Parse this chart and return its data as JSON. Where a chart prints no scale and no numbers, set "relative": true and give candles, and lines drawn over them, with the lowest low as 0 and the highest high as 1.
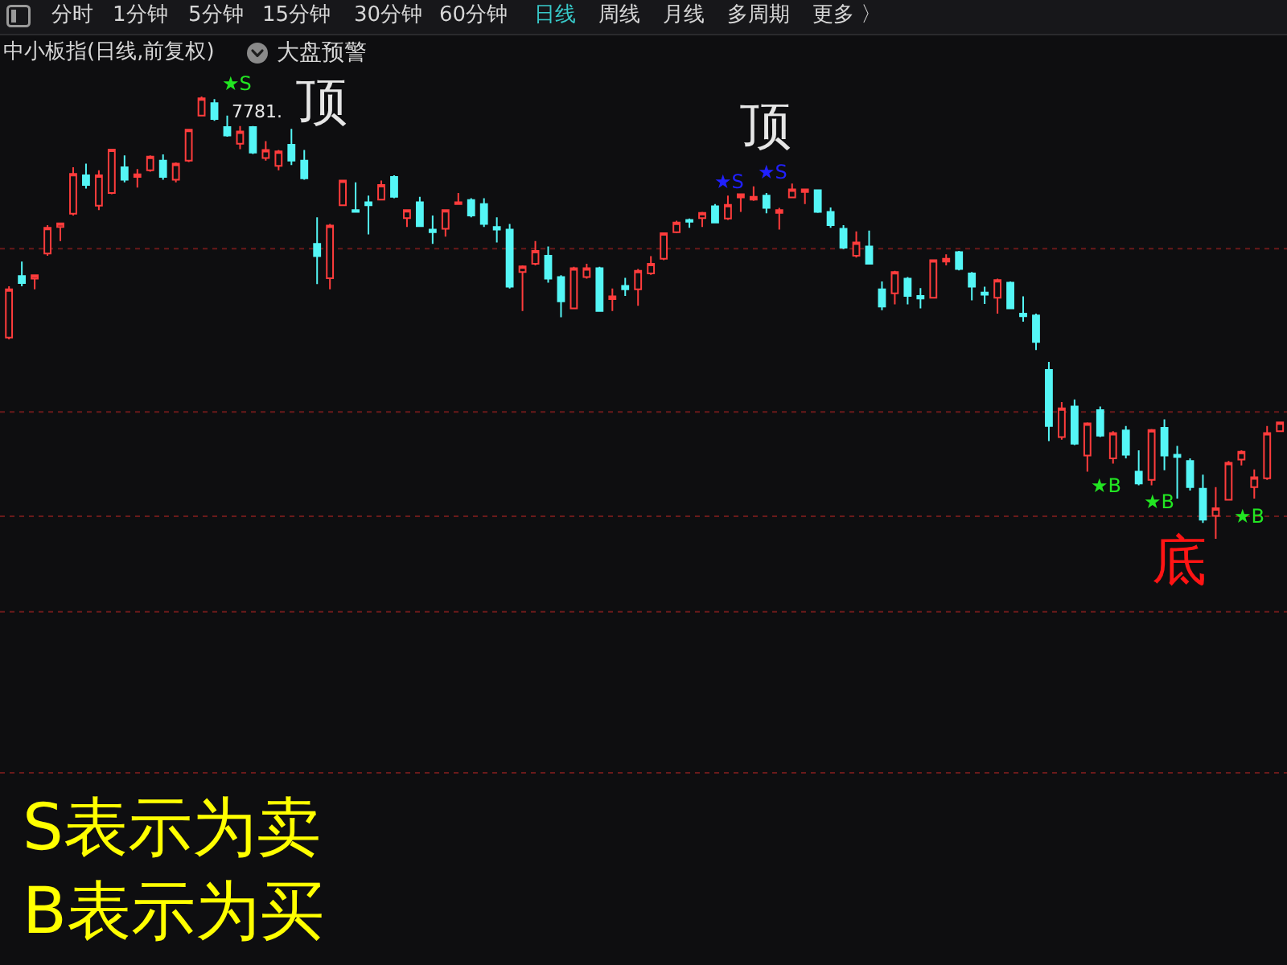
{
  "chart_data": {
    "type": "candlestick",
    "title": "中小板指(日线,前复权)",
    "relative": true,
    "annotations": [
      "分时",
      "1分钟",
      "5分钟",
      "15分钟",
      "30分钟",
      "60分钟",
      "日线",
      "周线",
      "月线",
      "多周期",
      "更多 〉",
      "大盘预警",
      "★S",
      "顶",
      "7781.",
      "顶",
      "★S",
      "★S",
      "★B",
      "★B",
      "★B",
      "底",
      "S表示为卖",
      "B表示为买"
    ],
    "categories": [
      null,
      null,
      null,
      null,
      null,
      null,
      null,
      null,
      null,
      null,
      null,
      null,
      null,
      null,
      null,
      null,
      null,
      null,
      null,
      null,
      null,
      null,
      null,
      null,
      null,
      null,
      null,
      null,
      null,
      null,
      null,
      null,
      null,
      null,
      null,
      null,
      null,
      null,
      null,
      null,
      null,
      null,
      null,
      null,
      null,
      null,
      null,
      null,
      null,
      null,
      null,
      null,
      null,
      null,
      null,
      null,
      null,
      null,
      null,
      null,
      null,
      null,
      null,
      null,
      null,
      null,
      null,
      null,
      null,
      null,
      null,
      null,
      null,
      null,
      null,
      null,
      null,
      null,
      null,
      null,
      null,
      null,
      null,
      null,
      null,
      null,
      null,
      null,
      null,
      null,
      null,
      null,
      null,
      null,
      null,
      null,
      null,
      null,
      null,
      null
    ],
    "ohlc": [
      [
        0.455,
        0.571,
        0.451,
        0.564
      ],
      [
        0.594,
        0.627,
        0.571,
        0.578
      ],
      [
        0.588,
        0.596,
        0.564,
        0.596
      ],
      [
        0.645,
        0.709,
        0.64,
        0.703
      ],
      [
        0.705,
        0.713,
        0.673,
        0.713
      ],
      [
        0.735,
        0.84,
        0.731,
        0.825
      ],
      [
        0.822,
        0.848,
        0.792,
        0.8
      ],
      [
        0.753,
        0.833,
        0.743,
        0.822
      ],
      [
        0.782,
        0.881,
        0.779,
        0.88
      ],
      [
        0.84,
        0.867,
        0.806,
        0.812
      ],
      [
        0.818,
        0.836,
        0.794,
        0.824
      ],
      [
        0.833,
        0.867,
        0.83,
        0.864
      ],
      [
        0.855,
        0.869,
        0.812,
        0.818
      ],
      [
        0.812,
        0.851,
        0.806,
        0.848
      ],
      [
        0.855,
        0.927,
        0.852,
        0.925
      ],
      [
        0.957,
        1.0,
        0.955,
        0.996
      ],
      [
        0.985,
        0.994,
        0.945,
        0.949
      ],
      [
        0.931,
        0.957,
        0.909,
        0.912
      ],
      [
        0.893,
        0.933,
        0.881,
        0.921
      ],
      [
        0.931,
        0.933,
        0.87,
        0.873
      ],
      [
        0.861,
        0.899,
        0.855,
        0.879
      ],
      [
        0.843,
        0.879,
        0.833,
        0.876
      ],
      [
        0.891,
        0.927,
        0.845,
        0.855
      ],
      [
        0.855,
        0.879,
        0.812,
        0.815
      ],
      [
        0.667,
        0.727,
        0.576,
        0.639
      ],
      [
        0.589,
        0.712,
        0.564,
        0.708
      ],
      [
        0.754,
        0.811,
        0.753,
        0.81
      ],
      [
        0.743,
        0.806,
        0.738,
        0.739
      ],
      [
        0.761,
        0.776,
        0.688,
        0.754
      ],
      [
        0.767,
        0.81,
        0.766,
        0.8
      ],
      [
        0.818,
        0.822,
        0.77,
        0.773
      ],
      [
        0.725,
        0.745,
        0.705,
        0.743
      ],
      [
        0.761,
        0.773,
        0.705,
        0.707
      ],
      [
        0.699,
        0.731,
        0.667,
        0.693
      ],
      [
        0.701,
        0.745,
        0.683,
        0.743
      ],
      [
        0.757,
        0.782,
        0.757,
        0.761
      ],
      [
        0.766,
        0.77,
        0.727,
        0.731
      ],
      [
        0.757,
        0.77,
        0.705,
        0.712
      ],
      [
        0.705,
        0.727,
        0.67,
        0.699
      ],
      [
        0.699,
        0.712,
        0.566,
        0.57
      ],
      [
        0.603,
        0.618,
        0.515,
        0.616
      ],
      [
        0.622,
        0.673,
        0.618,
        0.651
      ],
      [
        0.64,
        0.661,
        0.579,
        0.588
      ],
      [
        0.592,
        0.596,
        0.501,
        0.537
      ],
      [
        0.521,
        0.615,
        0.519,
        0.612
      ],
      [
        0.592,
        0.622,
        0.588,
        0.612
      ],
      [
        0.612,
        0.615,
        0.513,
        0.515
      ],
      [
        0.542,
        0.566,
        0.515,
        0.548
      ],
      [
        0.572,
        0.59,
        0.549,
        0.564
      ],
      [
        0.564,
        0.61,
        0.527,
        0.606
      ],
      [
        0.6,
        0.639,
        0.597,
        0.622
      ],
      [
        0.633,
        0.691,
        0.63,
        0.691
      ],
      [
        0.693,
        0.719,
        0.691,
        0.715
      ],
      [
        0.721,
        0.724,
        0.703,
        0.717
      ],
      [
        0.725,
        0.739,
        0.705,
        0.737
      ],
      [
        0.752,
        0.757,
        0.713,
        0.715
      ],
      [
        0.724,
        0.776,
        0.721,
        0.755
      ],
      [
        0.772,
        0.779,
        0.739,
        0.779
      ],
      [
        0.767,
        0.797,
        0.764,
        0.773
      ],
      [
        0.776,
        0.782,
        0.736,
        0.748
      ],
      [
        0.737,
        0.748,
        0.699,
        0.743
      ],
      [
        0.772,
        0.803,
        0.77,
        0.79
      ],
      [
        0.784,
        0.79,
        0.757,
        0.79
      ],
      [
        0.788,
        0.79,
        0.737,
        0.739
      ],
      [
        0.739,
        0.749,
        0.703,
        0.709
      ],
      [
        0.701,
        0.709,
        0.655,
        0.658
      ],
      [
        0.64,
        0.695,
        0.636,
        0.67
      ],
      [
        0.661,
        0.697,
        0.621,
        0.622
      ],
      [
        0.564,
        0.582,
        0.517,
        0.525
      ],
      [
        0.555,
        0.606,
        0.53,
        0.603
      ],
      [
        0.588,
        0.592,
        0.53,
        0.549
      ],
      [
        0.549,
        0.567,
        0.521,
        0.543
      ],
      [
        0.545,
        0.63,
        0.543,
        0.63
      ],
      [
        0.627,
        0.643,
        0.618,
        0.633
      ],
      [
        0.648,
        0.651,
        0.607,
        0.61
      ],
      [
        0.6,
        0.603,
        0.539,
        0.57
      ],
      [
        0.557,
        0.57,
        0.531,
        0.552
      ],
      [
        0.545,
        0.588,
        0.509,
        0.585
      ],
      [
        0.579,
        0.582,
        0.519,
        0.521
      ],
      [
        0.509,
        0.548,
        0.491,
        0.503
      ],
      [
        0.505,
        0.509,
        0.427,
        0.445
      ],
      [
        0.382,
        0.4,
        0.221,
        0.255
      ],
      [
        0.23,
        0.309,
        0.224,
        0.295
      ],
      [
        0.299,
        0.315,
        0.212,
        0.215
      ],
      [
        0.188,
        0.263,
        0.152,
        0.261
      ],
      [
        0.291,
        0.299,
        0.23,
        0.233
      ],
      [
        0.182,
        0.243,
        0.17,
        0.239
      ],
      [
        0.245,
        0.255,
        0.182,
        0.19
      ],
      [
        0.152,
        0.2,
        0.121,
        0.125
      ],
      [
        0.133,
        0.248,
        0.121,
        0.246
      ],
      [
        0.251,
        0.27,
        0.155,
        0.188
      ],
      [
        0.19,
        0.21,
        0.091,
        0.185
      ],
      [
        0.176,
        0.182,
        0.109,
        0.117
      ],
      [
        0.113,
        0.145,
        0.036,
        0.043
      ],
      [
        0.052,
        0.117,
        0.0,
        0.069
      ],
      [
        0.088,
        0.176,
        0.088,
        0.172
      ],
      [
        0.179,
        0.2,
        0.166,
        0.197
      ],
      [
        0.117,
        0.157,
        0.091,
        0.139
      ],
      [
        0.137,
        0.255,
        0.133,
        0.239
      ],
      [
        0.243,
        0.265,
        0.243,
        0.263
      ]
    ],
    "ref_lines": [
      {
        "axis": "y",
        "value": 0.656,
        "color": "#6a1a1a",
        "line_style": "dotted"
      },
      {
        "axis": "y",
        "value": 0.287,
        "color": "#6a1a1a",
        "line_style": "dotted"
      },
      {
        "axis": "y",
        "value": 0.051,
        "color": "#6a1a1a",
        "line_style": "dotted"
      },
      {
        "axis": "y",
        "value": -0.165,
        "color": "#6a1a1a",
        "line_style": "dotted"
      },
      {
        "axis": "y",
        "value": -0.529,
        "color": "#6a1a1a",
        "line_style": "dotted"
      }
    ]
  }
}
